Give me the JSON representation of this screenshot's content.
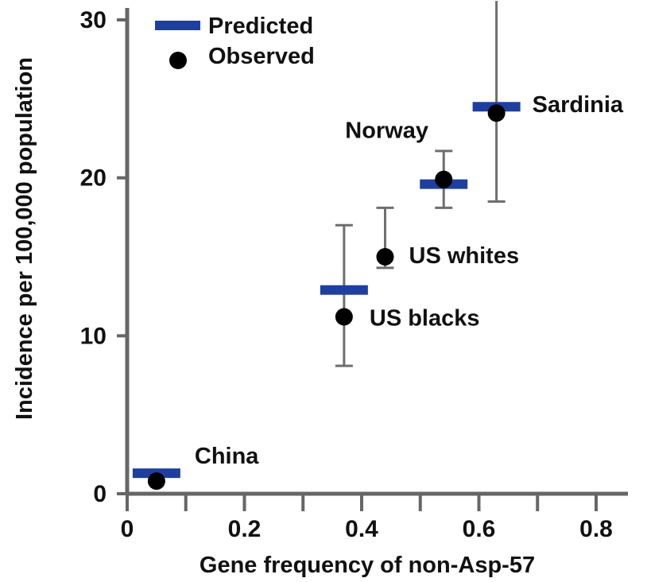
{
  "chart_data": {
    "type": "scatter",
    "xlabel": "Gene frequency of non-Asp-57",
    "ylabel": "Incidence per 100,000 population",
    "xlim": [
      0,
      0.85
    ],
    "ylim": [
      0,
      30
    ],
    "xticks": [
      {
        "value": 0,
        "label": "0"
      },
      {
        "value": 0.2,
        "label": "0.2"
      },
      {
        "value": 0.4,
        "label": "0.4"
      },
      {
        "value": 0.6,
        "label": "0.6"
      },
      {
        "value": 0.8,
        "label": "0.8"
      }
    ],
    "yticks": [
      {
        "value": 0,
        "label": "0"
      },
      {
        "value": 10,
        "label": "10"
      },
      {
        "value": 20,
        "label": "20"
      },
      {
        "value": 30,
        "label": "30"
      }
    ],
    "grid": false,
    "legend": {
      "position": "top-left",
      "entries": [
        {
          "name": "Predicted",
          "marker": "bar"
        },
        {
          "name": "Observed",
          "marker": "dot"
        }
      ]
    },
    "colors": {
      "predicted": "#1f3f9e",
      "observed": "#000000",
      "errorbar": "#6e6e6e"
    },
    "series": [
      {
        "name": "Observed",
        "points": [
          {
            "label": "China",
            "x": 0.05,
            "y": 0.8
          },
          {
            "label": "US blacks",
            "x": 0.37,
            "y": 11.2,
            "err_low": 8.1,
            "err_high": 17.0
          },
          {
            "label": "US whites",
            "x": 0.44,
            "y": 15.0,
            "err_low": 14.3,
            "err_high": 18.1
          },
          {
            "label": "Norway",
            "x": 0.54,
            "y": 19.9,
            "err_low": 18.1,
            "err_high": 21.7
          },
          {
            "label": "Sardinia",
            "x": 0.63,
            "y": 24.1,
            "err_low": 18.5,
            "err_high": 31.2
          }
        ]
      },
      {
        "name": "Predicted",
        "points": [
          {
            "label": "China",
            "x": 0.05,
            "y": 1.3
          },
          {
            "label": "US blacks",
            "x": 0.37,
            "y": 12.9
          },
          {
            "label": "Norway",
            "x": 0.54,
            "y": 19.6
          },
          {
            "label": "Sardinia",
            "x": 0.63,
            "y": 24.5
          }
        ]
      }
    ]
  }
}
